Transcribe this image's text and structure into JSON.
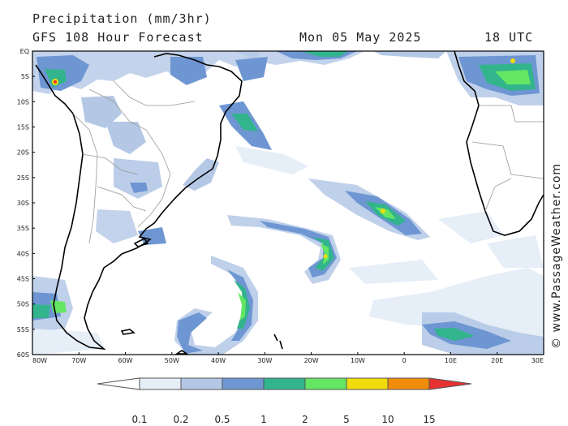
{
  "header": {
    "title": "Precipitation (mm/3hr)",
    "subtitle": "GFS 108 Hour Forecast",
    "date": "Mon 05 May 2025",
    "time": "18 UTC"
  },
  "credit": "© www.PassageWeather.com",
  "map": {
    "lat_labels": [
      "EQ",
      "5S",
      "10S",
      "15S",
      "20S",
      "25S",
      "30S",
      "35S",
      "40S",
      "45S",
      "50S",
      "55S",
      "60S"
    ],
    "lon_labels": [
      "80W",
      "70W",
      "60W",
      "50W",
      "40W",
      "30W",
      "20W",
      "10W",
      "0",
      "10E",
      "20E",
      "30E"
    ],
    "lon_range": [
      -80,
      30
    ],
    "lat_range": [
      -60,
      0
    ]
  },
  "legend": {
    "labels": [
      "0.1",
      "0.2",
      "0.5",
      "1",
      "2",
      "5",
      "10",
      "15"
    ],
    "colors": [
      "#ffffff",
      "#e6eef8",
      "#b4c8e6",
      "#6e96d2",
      "#32b48c",
      "#64e664",
      "#f0dc0a",
      "#f08c0a",
      "#e63232"
    ]
  }
}
